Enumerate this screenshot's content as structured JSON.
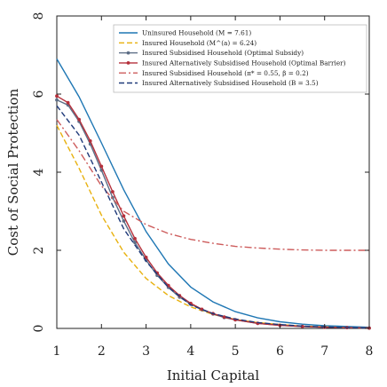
{
  "chart_data": {
    "type": "line",
    "title": "",
    "xlabel": "Initial Capital",
    "ylabel": "Cost of Social Protection",
    "xlim": [
      1,
      8
    ],
    "ylim": [
      0,
      8
    ],
    "xticks": [
      "1",
      "2",
      "3",
      "4",
      "5",
      "6",
      "7",
      "8"
    ],
    "yticks": [
      "0",
      "2",
      "4",
      "6",
      "8"
    ],
    "grid": false,
    "legend_position": "top-right",
    "series": [
      {
        "name": "Uninsured Household (M = 7.61)",
        "color": "#1f77b4",
        "style": "solid",
        "x": [
          1,
          1.5,
          2,
          2.5,
          3,
          3.5,
          4,
          4.5,
          5,
          5.5,
          6,
          6.5,
          7,
          7.5,
          8
        ],
        "y": [
          6.9,
          5.93,
          4.75,
          3.55,
          2.48,
          1.65,
          1.06,
          0.68,
          0.43,
          0.27,
          0.17,
          0.11,
          0.07,
          0.05,
          0.03
        ]
      },
      {
        "name": "Insured Household (M^(a) = 6.24)",
        "color": "#e8b10e",
        "style": "dashed",
        "x": [
          1,
          1.5,
          2,
          2.5,
          3,
          3.5,
          4,
          4.5,
          5,
          5.5,
          6,
          6.5,
          7,
          7.5,
          8
        ],
        "y": [
          5.2,
          4.1,
          2.9,
          1.95,
          1.28,
          0.84,
          0.55,
          0.36,
          0.23,
          0.15,
          0.1,
          0.06,
          0.04,
          0.02,
          0.01
        ]
      },
      {
        "name": "Insured Subsidised Household (Optimal Subsidy)",
        "color": "#5d6e86",
        "style": "solid-dot",
        "x": [
          1,
          1.25,
          1.5,
          1.75,
          2,
          2.25,
          2.5,
          2.75,
          3,
          3.25,
          3.5,
          3.75,
          4,
          4.25,
          4.5,
          4.75,
          5,
          5.5,
          6,
          6.5,
          7,
          7.5,
          8
        ],
        "y": [
          5.85,
          5.72,
          5.3,
          4.72,
          4.05,
          3.35,
          2.75,
          2.2,
          1.75,
          1.36,
          1.05,
          0.8,
          0.62,
          0.48,
          0.37,
          0.28,
          0.22,
          0.13,
          0.08,
          0.05,
          0.03,
          0.02,
          0.01
        ]
      },
      {
        "name": "Insured Alternatively Subsidised Household (Optimal Barrier)",
        "color": "#b5303b",
        "style": "solid-dot",
        "x": [
          1,
          1.25,
          1.5,
          1.75,
          2,
          2.25,
          2.5,
          2.75,
          3,
          3.25,
          3.5,
          3.75,
          4,
          4.25,
          4.5,
          4.75,
          5,
          5.5,
          6,
          6.5,
          7,
          7.5,
          8
        ],
        "y": [
          5.95,
          5.78,
          5.35,
          4.8,
          4.15,
          3.5,
          2.88,
          2.3,
          1.82,
          1.42,
          1.1,
          0.84,
          0.64,
          0.49,
          0.38,
          0.29,
          0.22,
          0.13,
          0.08,
          0.05,
          0.03,
          0.02,
          0.01
        ]
      },
      {
        "name": "Insured Subsidised Household (π* = 0.55, β = 0.2)",
        "color": "#cd5c5c",
        "style": "dashdot",
        "x": [
          1,
          1.5,
          2,
          2.5,
          3,
          3.5,
          4,
          4.5,
          5,
          5.5,
          6,
          6.5,
          7,
          7.5,
          8
        ],
        "y": [
          5.35,
          4.55,
          3.65,
          3.0,
          2.66,
          2.43,
          2.28,
          2.18,
          2.1,
          2.06,
          2.03,
          2.01,
          2.0,
          2.0,
          2.0
        ]
      },
      {
        "name": "Insured Alternatively Subsidised Household (B = 3.5)",
        "color": "#1f3a7a",
        "style": "dashed",
        "x": [
          1,
          1.5,
          2,
          2.5,
          3,
          3.5,
          4,
          4.5,
          5,
          5.5,
          6,
          6.5,
          7,
          7.5,
          8
        ],
        "y": [
          5.7,
          4.95,
          3.75,
          2.55,
          1.72,
          1.05,
          0.6,
          0.38,
          0.24,
          0.15,
          0.1,
          0.06,
          0.04,
          0.02,
          0.01
        ]
      }
    ]
  }
}
